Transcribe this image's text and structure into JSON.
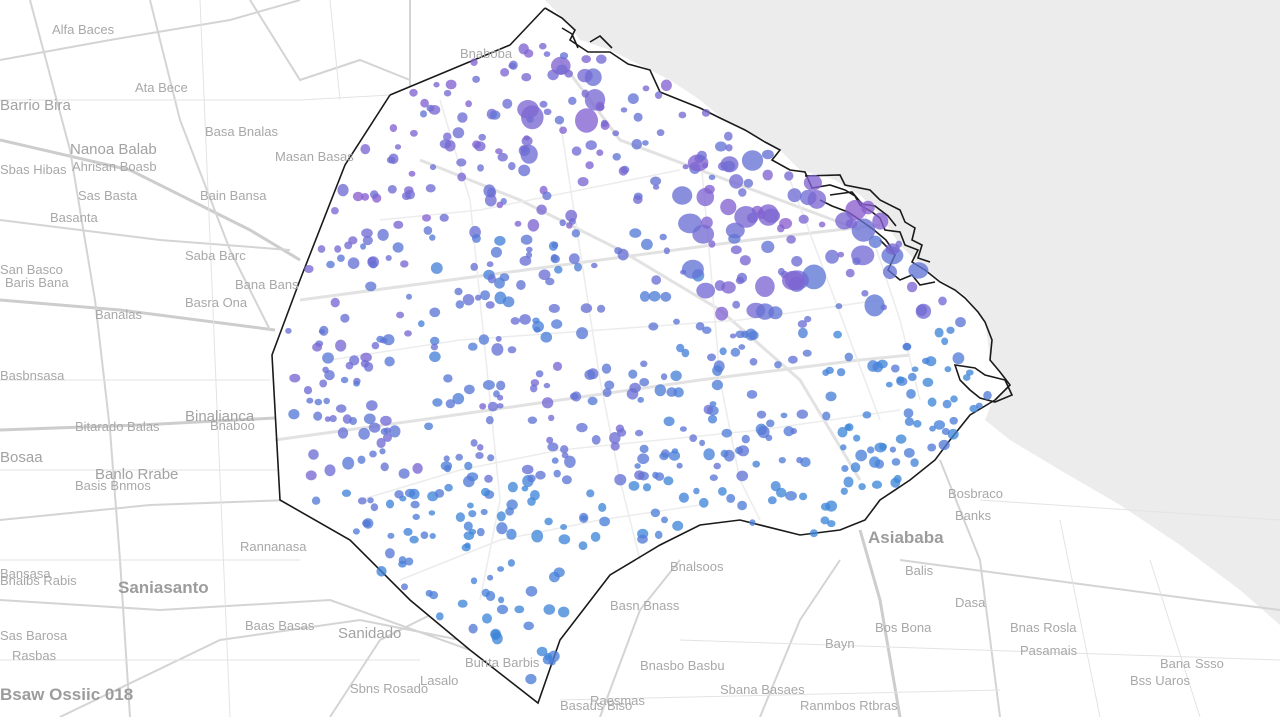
{
  "map": {
    "colors": {
      "water": "#ececec",
      "land": "#ffffff",
      "boundary": "#1a1a1a",
      "roads": "#d4d4d4",
      "labels": "#a8a8a8",
      "dot_blue": "#3f86d9",
      "dot_purple": "#8a5fd0"
    },
    "labels": [
      "Alfa Baces",
      "Ata Bece",
      "Barrio Bira",
      "Basa Bnalas",
      "Nanoa Balab",
      "Masan Basas",
      "Ahrisan Boasb",
      "Sbas Hibas",
      "Sas Basta",
      "Bain Bansa",
      "Basanta",
      "San Basco",
      "Baris Bana",
      "Bana Bans",
      "Banalas",
      "Binalianca",
      "Bitarado Balas",
      "Bosaa",
      "Banlo Rrabe",
      "Rannanasa",
      "Bansasa",
      "Saniasanto",
      "Baas Basas",
      "Sanidado",
      "Lasalo",
      "Sbns Rosado",
      "Sas Barosa",
      "Basaus Biso",
      "Raesmas",
      "Sbana Basaes",
      "Ranmbos Rtbras",
      "Pasamais",
      "Bana",
      "Bss Uaros",
      "Bnas Rosla",
      "Bos Bona",
      "Bayn",
      "Dasa",
      "Balis",
      "Bosbraco",
      "Asiababa",
      "Bnalsoos",
      "Ssso",
      "Banks",
      "Basbnsasa",
      "Bnaboba",
      "Bnaboo",
      "Saba Barc",
      "Basra Ona",
      "Basis Bnmos",
      "Bnaibs Rabis",
      "Rasbas",
      "Bunta Barbis",
      "Bnasbo Basbu",
      "Basn Bnass",
      "Bsaw Ossiic 018"
    ]
  }
}
